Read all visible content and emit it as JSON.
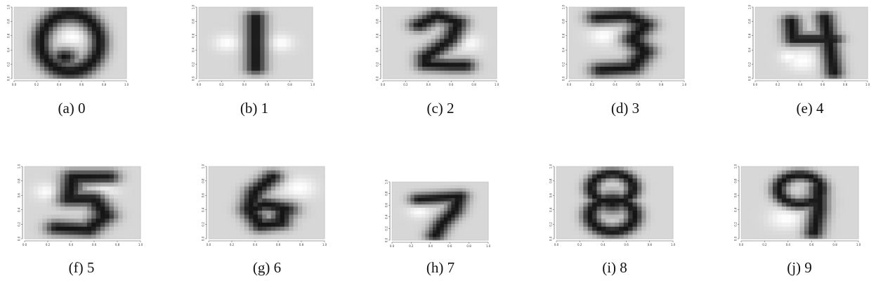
{
  "figure": {
    "panels": [
      {
        "label": "(a) 0",
        "digit": 0
      },
      {
        "label": "(b) 1",
        "digit": 1
      },
      {
        "label": "(c) 2",
        "digit": 2
      },
      {
        "label": "(d) 3",
        "digit": 3
      },
      {
        "label": "(e) 4",
        "digit": 4
      },
      {
        "label": "(f) 5",
        "digit": 5
      },
      {
        "label": "(g) 6",
        "digit": 6
      },
      {
        "label": "(h) 7",
        "digit": 7
      },
      {
        "label": "(i) 8",
        "digit": 8
      },
      {
        "label": "(j) 9",
        "digit": 9
      }
    ],
    "axis_ticks": [
      "0.0",
      "0.2",
      "0.4",
      "0.6",
      "0.8",
      "1.0"
    ],
    "axis_range": [
      0,
      1
    ],
    "colors": {
      "background": "#d9d9d9",
      "ink": "#111111",
      "axis": "#444444"
    }
  }
}
